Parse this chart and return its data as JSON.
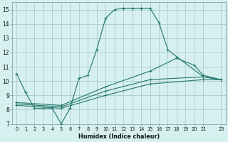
{
  "xlabel": "Humidex (Indice chaleur)",
  "background_color": "#d6f0f0",
  "grid_color": "#aacccc",
  "line_color": "#2a7a72",
  "xlim": [
    -0.5,
    23.5
  ],
  "ylim": [
    7,
    15.5
  ],
  "yticks": [
    7,
    8,
    9,
    10,
    11,
    12,
    13,
    14,
    15
  ],
  "xticks": [
    0,
    1,
    2,
    3,
    4,
    5,
    6,
    7,
    8,
    9,
    10,
    11,
    12,
    13,
    14,
    15,
    16,
    17,
    18,
    19,
    20,
    21,
    23
  ],
  "xtick_labels": [
    "0",
    "1",
    "2",
    "3",
    "4",
    "5",
    "6",
    "7",
    "8",
    "9",
    "10",
    "11",
    "12",
    "13",
    "14",
    "15",
    "16",
    "17",
    "18",
    "19",
    "20",
    "21",
    "23"
  ],
  "series": [
    {
      "x": [
        0,
        1,
        2,
        3,
        4,
        5,
        6,
        7,
        8,
        9,
        10,
        11,
        12,
        13,
        14,
        15,
        16,
        17,
        18,
        21,
        23
      ],
      "y": [
        10.5,
        9.2,
        8.1,
        8.1,
        8.1,
        7.0,
        8.1,
        10.2,
        10.4,
        12.2,
        14.4,
        15.0,
        15.1,
        15.1,
        15.1,
        15.1,
        14.1,
        12.2,
        11.7,
        10.3,
        10.1
      ]
    },
    {
      "x": [
        0,
        5,
        10,
        15,
        21,
        23
      ],
      "y": [
        8.3,
        8.1,
        9.0,
        9.8,
        10.1,
        10.1
      ]
    },
    {
      "x": [
        0,
        5,
        10,
        15,
        21,
        23
      ],
      "y": [
        8.4,
        8.2,
        9.3,
        10.1,
        10.3,
        10.1
      ]
    },
    {
      "x": [
        0,
        5,
        10,
        15,
        18,
        20,
        21,
        23
      ],
      "y": [
        8.5,
        8.3,
        9.6,
        10.7,
        11.6,
        11.1,
        10.4,
        10.1
      ]
    }
  ]
}
